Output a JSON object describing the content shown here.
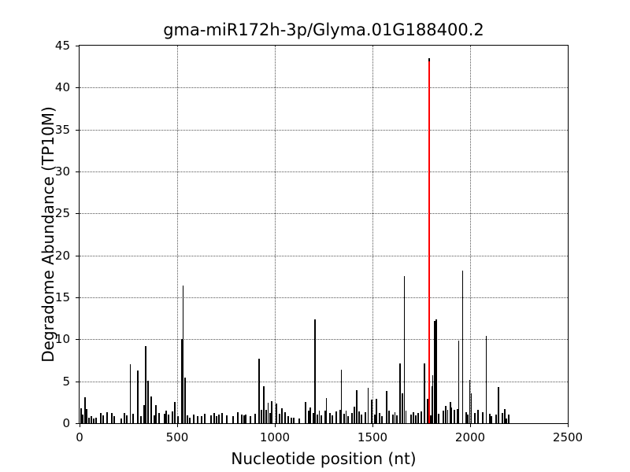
{
  "title": "gma-miR172h-3p/Glyma.01G188400.2",
  "chart_data": {
    "type": "bar",
    "title": "gma-miR172h-3p/Glyma.01G188400.2",
    "xlabel": "Nucleotide position (nt)",
    "ylabel": "Degradome Abundance (TP10M)",
    "xlim": [
      0,
      2500
    ],
    "ylim": [
      0,
      45
    ],
    "x_ticks": [
      0,
      500,
      1000,
      1500,
      2000,
      2500
    ],
    "y_ticks": [
      0,
      5,
      10,
      15,
      20,
      25,
      30,
      35,
      40,
      45
    ],
    "grid": "dotted major gridlines, both axes",
    "legend": "none",
    "bar_color": "#000000",
    "highlight_color": "#ff0000",
    "highlight_bar": {
      "x": 1791,
      "value": 43.5,
      "red_value": 43.1
    },
    "bars": [
      [
        8,
        1.8
      ],
      [
        16,
        1.0
      ],
      [
        28,
        3.1
      ],
      [
        36,
        1.7
      ],
      [
        48,
        0.7
      ],
      [
        60,
        0.8
      ],
      [
        72,
        0.6
      ],
      [
        85,
        0.7
      ],
      [
        109,
        1.2
      ],
      [
        121,
        0.9
      ],
      [
        141,
        1.3
      ],
      [
        165,
        1.2
      ],
      [
        177,
        0.8
      ],
      [
        214,
        0.6
      ],
      [
        230,
        1.2
      ],
      [
        242,
        0.9
      ],
      [
        261,
        7.0
      ],
      [
        274,
        1.1
      ],
      [
        298,
        6.3
      ],
      [
        315,
        0.8
      ],
      [
        331,
        2.2
      ],
      [
        339,
        9.2
      ],
      [
        351,
        5.1
      ],
      [
        367,
        3.2
      ],
      [
        383,
        0.9
      ],
      [
        391,
        2.2
      ],
      [
        407,
        1.2
      ],
      [
        435,
        1.1
      ],
      [
        443,
        1.5
      ],
      [
        455,
        1.0
      ],
      [
        476,
        1.4
      ],
      [
        488,
        2.5
      ],
      [
        504,
        0.8
      ],
      [
        524,
        10.0
      ],
      [
        530,
        16.4
      ],
      [
        540,
        5.4
      ],
      [
        552,
        0.9
      ],
      [
        565,
        0.7
      ],
      [
        585,
        1.0
      ],
      [
        605,
        0.8
      ],
      [
        625,
        0.8
      ],
      [
        641,
        1.1
      ],
      [
        673,
        0.9
      ],
      [
        689,
        1.2
      ],
      [
        702,
        0.8
      ],
      [
        714,
        1.0
      ],
      [
        730,
        1.2
      ],
      [
        754,
        0.9
      ],
      [
        786,
        0.8
      ],
      [
        810,
        1.3
      ],
      [
        831,
        1.0
      ],
      [
        843,
        0.9
      ],
      [
        851,
        1.0
      ],
      [
        875,
        0.8
      ],
      [
        899,
        1.1
      ],
      [
        919,
        7.7
      ],
      [
        931,
        1.6
      ],
      [
        944,
        4.4
      ],
      [
        956,
        1.6
      ],
      [
        965,
        2.4
      ],
      [
        976,
        1.2
      ],
      [
        984,
        2.6
      ],
      [
        1008,
        2.3
      ],
      [
        1024,
        1.1
      ],
      [
        1036,
        1.8
      ],
      [
        1052,
        1.3
      ],
      [
        1069,
        0.8
      ],
      [
        1085,
        0.7
      ],
      [
        1097,
        0.7
      ],
      [
        1125,
        0.6
      ],
      [
        1157,
        2.5
      ],
      [
        1173,
        1.5
      ],
      [
        1181,
        1.9
      ],
      [
        1198,
        1.2
      ],
      [
        1206,
        12.4
      ],
      [
        1218,
        1.0
      ],
      [
        1228,
        1.5
      ],
      [
        1238,
        0.9
      ],
      [
        1258,
        1.5
      ],
      [
        1263,
        3.0
      ],
      [
        1282,
        1.2
      ],
      [
        1294,
        0.9
      ],
      [
        1314,
        1.4
      ],
      [
        1335,
        1.6
      ],
      [
        1340,
        6.4
      ],
      [
        1355,
        1.1
      ],
      [
        1365,
        1.5
      ],
      [
        1375,
        0.8
      ],
      [
        1395,
        1.2
      ],
      [
        1407,
        2.0
      ],
      [
        1419,
        3.9
      ],
      [
        1431,
        1.4
      ],
      [
        1444,
        1.0
      ],
      [
        1463,
        1.3
      ],
      [
        1479,
        4.2
      ],
      [
        1496,
        2.8
      ],
      [
        1512,
        1.0
      ],
      [
        1520,
        2.9
      ],
      [
        1536,
        1.2
      ],
      [
        1548,
        0.8
      ],
      [
        1573,
        3.8
      ],
      [
        1585,
        1.5
      ],
      [
        1605,
        1.0
      ],
      [
        1615,
        1.3
      ],
      [
        1625,
        0.9
      ],
      [
        1641,
        7.1
      ],
      [
        1653,
        3.6
      ],
      [
        1664,
        17.5
      ],
      [
        1672,
        1.5
      ],
      [
        1698,
        1.0
      ],
      [
        1710,
        1.3
      ],
      [
        1722,
        0.9
      ],
      [
        1734,
        1.2
      ],
      [
        1750,
        1.4
      ],
      [
        1766,
        7.1
      ],
      [
        1782,
        2.9
      ],
      [
        1798,
        0.9
      ],
      [
        1804,
        4.4
      ],
      [
        1808,
        5.7
      ],
      [
        1818,
        12.2
      ],
      [
        1826,
        12.4
      ],
      [
        1839,
        1.1
      ],
      [
        1863,
        1.5
      ],
      [
        1875,
        2.1
      ],
      [
        1884,
        1.6
      ],
      [
        1899,
        2.5
      ],
      [
        1903,
        1.9
      ],
      [
        1919,
        1.6
      ],
      [
        1935,
        1.7
      ],
      [
        1941,
        9.8
      ],
      [
        1962,
        18.2
      ],
      [
        1980,
        1.3
      ],
      [
        1988,
        1.0
      ],
      [
        1999,
        5.2
      ],
      [
        2006,
        3.6
      ],
      [
        2024,
        1.2
      ],
      [
        2040,
        1.6
      ],
      [
        2065,
        1.3
      ],
      [
        2083,
        10.4
      ],
      [
        2101,
        1.1
      ],
      [
        2109,
        0.8
      ],
      [
        2133,
        1.0
      ],
      [
        2145,
        4.3
      ],
      [
        2165,
        1.2
      ],
      [
        2177,
        1.7
      ],
      [
        2185,
        0.6
      ],
      [
        2197,
        1.0
      ]
    ]
  }
}
